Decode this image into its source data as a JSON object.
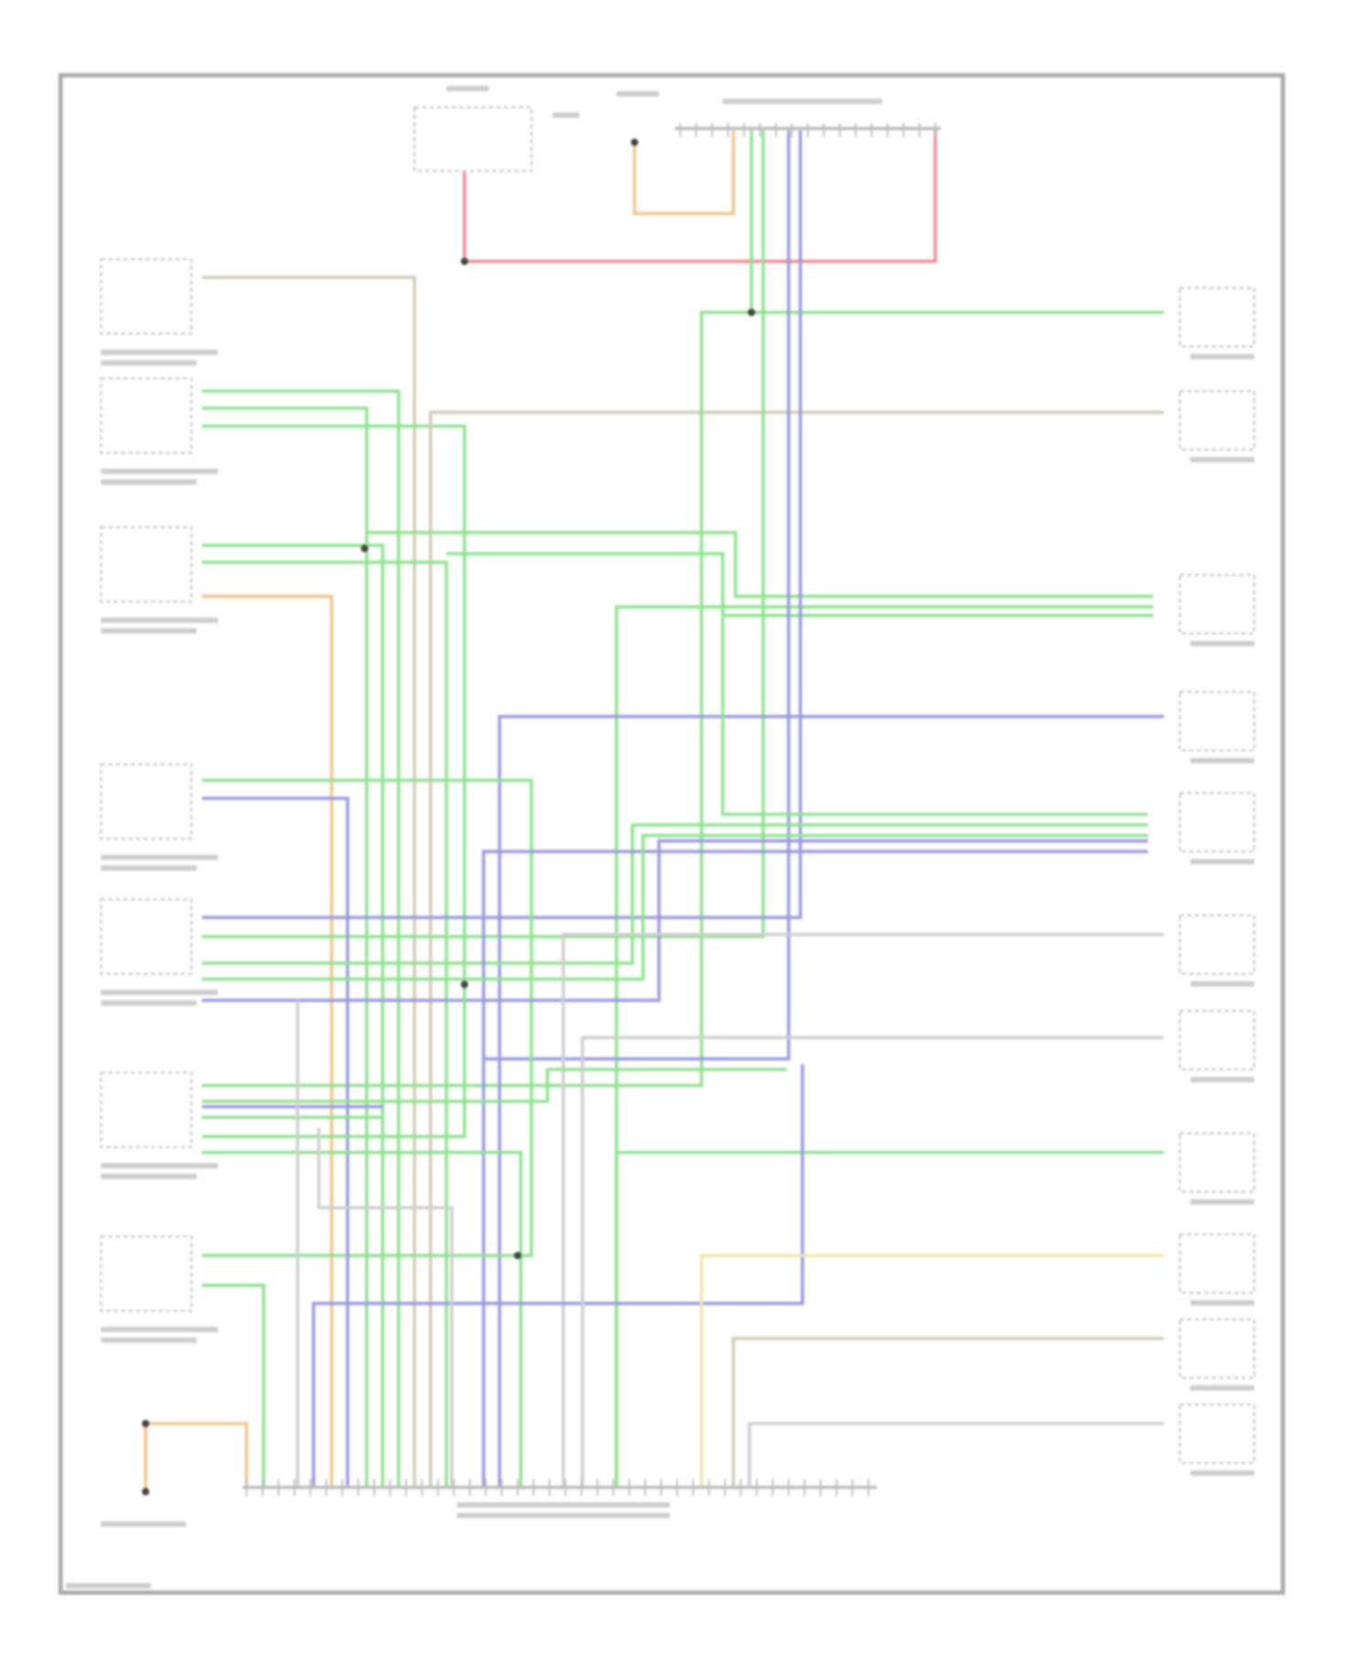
{
  "diagram": {
    "wire_colors": {
      "green": "#8fe38f",
      "blue": "#9a9ae0",
      "red": "#f08a94",
      "tan": "#d2cbb4",
      "orange": "#f2c58a",
      "yellow": "#efe6a8",
      "gray": "#cfcfcf"
    },
    "frame_color": "#9a9a9a",
    "label_color": "#b8b8b8"
  }
}
